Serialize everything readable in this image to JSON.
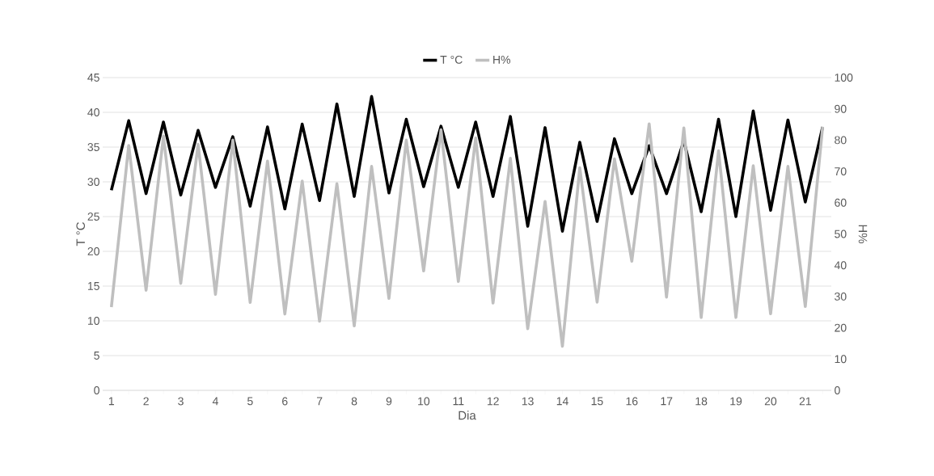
{
  "chart_data": {
    "type": "line",
    "xlabel": "Dia",
    "ylabel": "T °C",
    "y2label": "H%",
    "categories": [
      "1",
      null,
      "2",
      null,
      "3",
      null,
      "4",
      null,
      "5",
      null,
      "6",
      null,
      "7",
      null,
      "8",
      null,
      "9",
      null,
      "10",
      null,
      "11",
      null,
      "12",
      null,
      "13",
      null,
      "14",
      null,
      "15",
      null,
      "16",
      null,
      "17",
      null,
      "18",
      null,
      "19",
      null,
      "20",
      null,
      "21",
      null
    ],
    "series": [
      {
        "name": "T °C",
        "color": "#000000",
        "values": [
          28.8,
          38.8,
          28.3,
          38.6,
          28.1,
          37.4,
          29.2,
          36.5,
          26.5,
          37.9,
          26.1,
          38.3,
          27.3,
          41.2,
          27.9,
          42.3,
          28.4,
          39.0,
          29.3,
          38.0,
          29.2,
          38.6,
          27.9,
          39.4,
          23.6,
          37.8,
          22.9,
          35.7,
          24.3,
          36.2,
          28.3,
          35.2,
          28.3,
          35.9,
          25.7,
          39.0,
          25.0,
          40.2,
          25.9,
          38.9,
          27.1,
          37.9
        ]
      },
      {
        "name": "H%",
        "color": "#bfbfbf",
        "axis": "y2",
        "values": [
          26.6,
          78.3,
          32.0,
          81.3,
          34.2,
          78.7,
          30.7,
          80.0,
          28.1,
          73.3,
          24.4,
          66.9,
          22.1,
          66.1,
          20.6,
          71.6,
          29.4,
          80.0,
          38.2,
          83.3,
          34.8,
          80.7,
          27.9,
          74.2,
          19.7,
          60.4,
          14.1,
          71.2,
          28.2,
          74.0,
          41.3,
          85.2,
          29.8,
          83.9,
          23.3,
          76.6,
          23.3,
          71.8,
          24.5,
          71.6,
          26.8,
          84.3
        ]
      }
    ],
    "ylim": [
      0,
      45
    ],
    "yticks": [
      0,
      5,
      10,
      15,
      20,
      25,
      30,
      35,
      40,
      45
    ],
    "y2lim": [
      0,
      100
    ],
    "y2ticks": [
      0,
      10,
      20,
      30,
      40,
      50,
      60,
      70,
      80,
      90,
      100
    ],
    "grid": "y",
    "legend": "top",
    "marker": "none",
    "line_style": "solid"
  }
}
